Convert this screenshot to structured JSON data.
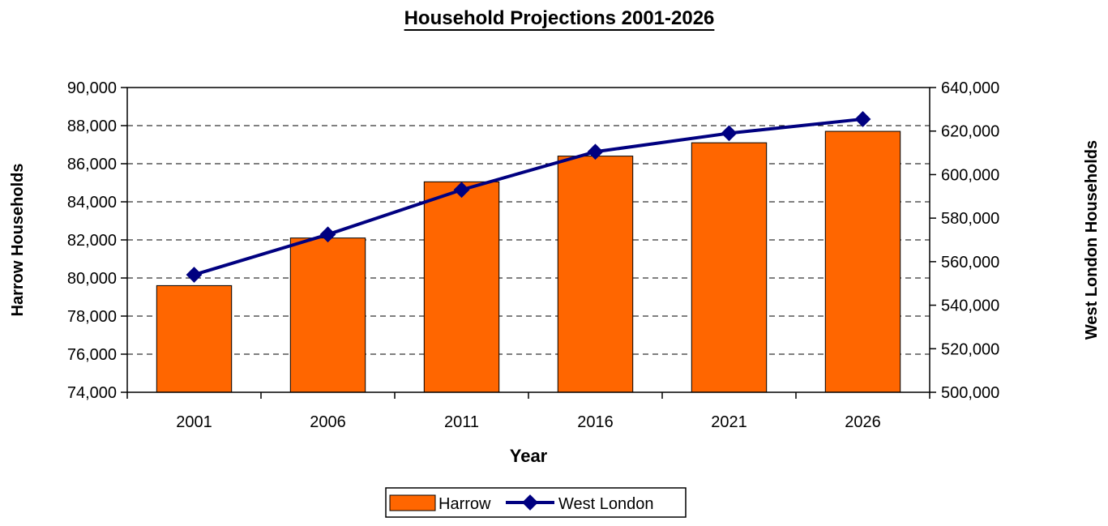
{
  "chart_data": {
    "type": "bar",
    "title": "Household Projections 2001-2026",
    "xlabel": "Year",
    "ylabel": "Harrow Households",
    "y2label": "West London Households",
    "categories": [
      "2001",
      "2006",
      "2011",
      "2016",
      "2021",
      "2026"
    ],
    "ylim": [
      74000,
      90000
    ],
    "y_ticks": [
      74000,
      76000,
      78000,
      80000,
      82000,
      84000,
      86000,
      88000,
      90000
    ],
    "y_tick_labels": [
      "74,000",
      "76,000",
      "78,000",
      "80,000",
      "82,000",
      "84,000",
      "86,000",
      "88,000",
      "90,000"
    ],
    "y2lim": [
      500000,
      640000
    ],
    "y2_ticks": [
      500000,
      520000,
      540000,
      560000,
      580000,
      600000,
      620000,
      640000
    ],
    "y2_tick_labels": [
      "500,000",
      "520,000",
      "540,000",
      "560,000",
      "580,000",
      "600,000",
      "620,000",
      "640,000"
    ],
    "grid": true,
    "legend_position": "bottom",
    "series": [
      {
        "name": "Harrow",
        "type": "bar",
        "axis": "left",
        "color": "#FF6600",
        "values": [
          79600,
          82100,
          85050,
          86400,
          87100,
          87700
        ]
      },
      {
        "name": "West London",
        "type": "line",
        "axis": "right",
        "color": "#000080",
        "marker": "diamond",
        "values": [
          554000,
          572500,
          593000,
          610500,
          619000,
          625500
        ]
      }
    ]
  }
}
